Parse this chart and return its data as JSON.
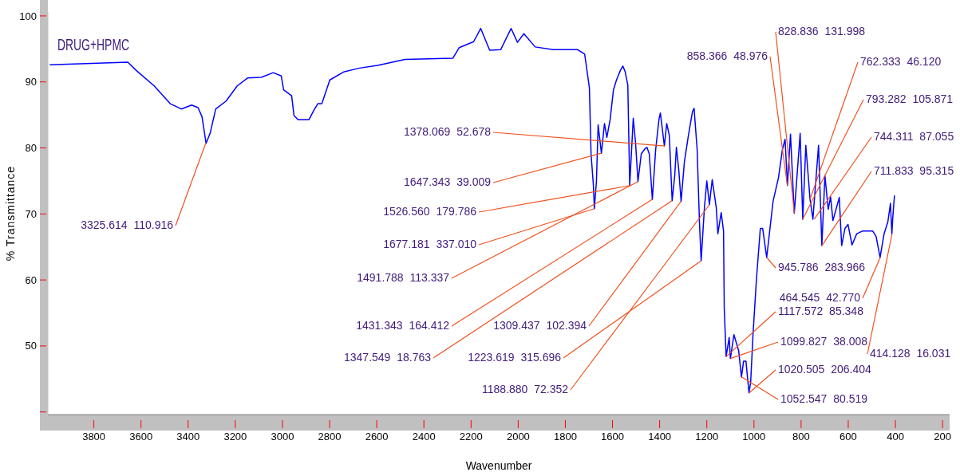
{
  "chart_data": {
    "type": "line",
    "title": "DRUG+HPMC",
    "xlabel": "Wavenumber",
    "ylabel": "% Transmittance",
    "xlim": [
      3995,
      170
    ],
    "ylim": [
      39.6,
      100.6
    ],
    "xticks": [
      3800,
      3600,
      3400,
      3200,
      3000,
      2800,
      2600,
      2400,
      2200,
      2000,
      1800,
      1600,
      1400,
      1200,
      1000,
      800,
      600,
      400,
      200
    ],
    "yticks": [
      {
        "value": 40,
        "label": null
      },
      50,
      60,
      70,
      80,
      90,
      100
    ],
    "grid": false,
    "marker": "none",
    "line_style": "solid",
    "series": [
      {
        "color": "#0000ff",
        "x": [
          3987,
          3656,
          3622,
          3544,
          3476,
          3429,
          3385,
          3358,
          3341,
          3324,
          3307,
          3283,
          3239,
          3192,
          3148,
          3090,
          3039,
          3005,
          2995,
          2961,
          2951,
          2934,
          2887,
          2867,
          2850,
          2833,
          2799,
          2741,
          2673,
          2596,
          2480,
          2277,
          2250,
          2189,
          2159,
          2121,
          2074,
          2030,
          2003,
          1976,
          1928,
          1851,
          1749,
          1718,
          1698,
          1691,
          1681,
          1677,
          1668,
          1661,
          1647,
          1634,
          1624,
          1610,
          1596,
          1583,
          1566,
          1556,
          1546,
          1535,
          1527,
          1512,
          1502,
          1492,
          1478,
          1464,
          1454,
          1444,
          1431,
          1417,
          1403,
          1397,
          1380,
          1370,
          1359,
          1347,
          1336,
          1329,
          1319,
          1309,
          1295,
          1278,
          1261,
          1254,
          1241,
          1231,
          1224,
          1210,
          1200,
          1189,
          1177,
          1160,
          1153,
          1139,
          1129,
          1126,
          1118,
          1105,
          1100,
          1085,
          1065,
          1053,
          1044,
          1034,
          1021,
          1014,
          1004,
          990,
          973,
          963,
          946,
          919,
          896,
          879,
          868,
          858,
          845,
          829,
          804,
          793,
          780,
          762,
          750,
          726,
          712,
          699,
          685,
          675,
          665,
          638,
          628,
          614,
          601,
          584,
          564,
          540,
          496,
          482,
          465,
          448,
          432,
          421,
          415,
          411,
          404
        ],
        "values": [
          92.6,
          93.0,
          91.8,
          89.4,
          86.7,
          85.9,
          86.5,
          86.1,
          84.7,
          80.7,
          82.2,
          85.9,
          87.1,
          89.4,
          90.6,
          90.7,
          91.4,
          90.9,
          88.8,
          87.9,
          84.9,
          84.3,
          84.3,
          85.7,
          86.7,
          86.7,
          90.3,
          91.5,
          92.1,
          92.5,
          93.4,
          93.6,
          95.2,
          96.1,
          98.1,
          94.8,
          94.9,
          98.1,
          96.0,
          97.3,
          95.3,
          94.9,
          94.9,
          94.2,
          89.1,
          79.1,
          74.3,
          70.8,
          75.0,
          83.5,
          79.2,
          83.7,
          81.6,
          84.3,
          88.8,
          90.3,
          91.8,
          92.4,
          91.5,
          89.5,
          74.3,
          84.5,
          80.7,
          74.9,
          79.1,
          79.8,
          80.1,
          79.1,
          72.2,
          79.7,
          84.3,
          85.3,
          80.3,
          83.7,
          81.9,
          72.0,
          75.8,
          80.1,
          76.7,
          71.9,
          77.9,
          81.9,
          85.5,
          86.0,
          79.8,
          68.6,
          62.9,
          71.0,
          75.0,
          71.4,
          75.2,
          71.0,
          67.0,
          70.2,
          67.4,
          55.7,
          48.4,
          51.3,
          48.1,
          51.7,
          49.3,
          45.3,
          47.7,
          47.7,
          42.9,
          44.5,
          51.7,
          59.8,
          67.8,
          67.8,
          63.4,
          71.9,
          75.5,
          79.8,
          81.3,
          74.3,
          82.1,
          70.1,
          82.2,
          69.2,
          80.4,
          72.2,
          69.2,
          80.4,
          65.2,
          75.8,
          70.7,
          72.6,
          69.0,
          72.5,
          65.2,
          67.8,
          68.4,
          65.3,
          67.0,
          67.4,
          67.4,
          66.6,
          63.4,
          67.0,
          68.8,
          71.6,
          67.0,
          69.5,
          72.8
        ]
      }
    ],
    "annotations": [
      {
        "text": "3325.614  110.916",
        "x": 3325.614,
        "y": 80.7
      },
      {
        "text": "1378.069  52.678",
        "x": 1378.069,
        "y": 80.3
      },
      {
        "text": "1647.343  39.009",
        "x": 1647.343,
        "y": 79.2
      },
      {
        "text": "1526.560  179.786",
        "x": 1526.56,
        "y": 74.3
      },
      {
        "text": "1677.181  337.010",
        "x": 1677.181,
        "y": 70.8
      },
      {
        "text": "1491.788  113.337",
        "x": 1491.788,
        "y": 74.9
      },
      {
        "text": "1431.343  164.412",
        "x": 1431.343,
        "y": 72.2
      },
      {
        "text": "1347.549  18.763",
        "x": 1347.549,
        "y": 72.0
      },
      {
        "text": "1309.437  102.394",
        "x": 1309.437,
        "y": 71.9
      },
      {
        "text": "1223.619  315.696",
        "x": 1223.619,
        "y": 62.9
      },
      {
        "text": "1188.880  72.352",
        "x": 1188.88,
        "y": 71.4
      },
      {
        "text": "858.366  48.976",
        "x": 858.366,
        "y": 74.3
      },
      {
        "text": "828.836  131.998",
        "x": 828.836,
        "y": 70.1
      },
      {
        "text": "762.333  46.120",
        "x": 762.333,
        "y": 72.2
      },
      {
        "text": "793.282  105.871",
        "x": 793.282,
        "y": 69.2
      },
      {
        "text": "744.311  87.055",
        "x": 744.311,
        "y": 69.2
      },
      {
        "text": "711.833  95.315",
        "x": 711.833,
        "y": 65.2
      },
      {
        "text": "945.786  283.966",
        "x": 945.786,
        "y": 63.4
      },
      {
        "text": "1117.572  85.348",
        "x": 1117.572,
        "y": 48.4
      },
      {
        "text": "1099.827  38.008",
        "x": 1099.827,
        "y": 48.1
      },
      {
        "text": "1020.505  206.404",
        "x": 1020.505,
        "y": 42.9
      },
      {
        "text": "1052.547  80.519",
        "x": 1052.547,
        "y": 45.3
      },
      {
        "text": "464.545  42.770",
        "x": 464.545,
        "y": 63.4
      },
      {
        "text": "414.128  16.031",
        "x": 414.128,
        "y": 67.0
      }
    ]
  }
}
